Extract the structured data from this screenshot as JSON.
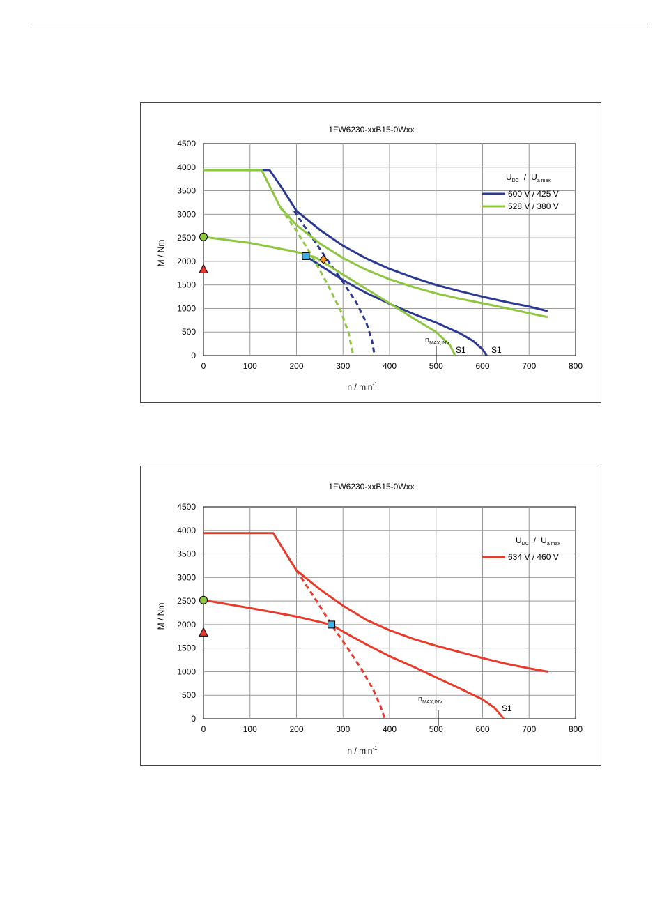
{
  "charts": [
    {
      "title": "1FW6230-xxB15-0Wxx",
      "ylabel": "M / Nm",
      "xlabel_base": "n / min",
      "xlabel_sup": "-1",
      "legend_header": {
        "u_dc": "U",
        "u_dc_sub": "DC",
        "sep": "/",
        "u_a": "U",
        "u_a_sub": "a max"
      },
      "nmax_label": {
        "main": "n",
        "sub": "MAX,INV"
      }
    },
    {
      "title": "1FW6230-xxB15-0Wxx",
      "ylabel": "M / Nm",
      "xlabel_base": "n / min",
      "xlabel_sup": "-1",
      "legend_header": {
        "u_dc": "U",
        "u_dc_sub": "DC",
        "sep": "/",
        "u_a": "U",
        "u_a_sub": "a max"
      },
      "nmax_label": {
        "main": "n",
        "sub": "MAX,INV"
      }
    }
  ],
  "chart_data": [
    {
      "type": "line",
      "title": "1FW6230-xxB15-0Wxx",
      "xlabel": "n / min-1",
      "ylabel": "M / Nm",
      "xlim": [
        0,
        800
      ],
      "ylim": [
        0,
        4500
      ],
      "xticks": [
        0,
        100,
        200,
        300,
        400,
        500,
        600,
        700,
        800
      ],
      "yticks": [
        0,
        500,
        1000,
        1500,
        2000,
        2500,
        3000,
        3500,
        4000,
        4500
      ],
      "grid": true,
      "legend_position": "top-right",
      "series": [
        {
          "name": "600 V / 425 V",
          "color": "#2b3990",
          "curves": [
            {
              "style": "solid",
              "x": [
                0,
                142,
                170,
                200,
                250,
                300,
                350,
                400,
                450,
                500,
                550,
                600,
                650,
                700,
                740
              ],
              "y": [
                3940,
                3940,
                3540,
                3070,
                2670,
                2330,
                2060,
                1840,
                1660,
                1500,
                1370,
                1250,
                1140,
                1040,
                945
              ]
            },
            {
              "style": "solid",
              "x": [
                220,
                250,
                300,
                350,
                400,
                450,
                500,
                550,
                580,
                600,
                609
              ],
              "y": [
                2110,
                1920,
                1600,
                1330,
                1100,
                890,
                700,
                480,
                310,
                130,
                0
              ]
            },
            {
              "style": "dashed",
              "x": [
                195,
                220,
                260,
                300,
                330,
                350,
                362,
                368
              ],
              "y": [
                3070,
                2700,
                2120,
                1560,
                1100,
                700,
                330,
                0
              ]
            }
          ]
        },
        {
          "name": "528 V / 380 V",
          "color": "#8dc63f",
          "curves": [
            {
              "style": "solid",
              "x": [
                0,
                125,
                165,
                200,
                250,
                300,
                350,
                400,
                450,
                500,
                550,
                600,
                650,
                700,
                740
              ],
              "y": [
                3940,
                3940,
                3150,
                2770,
                2380,
                2070,
                1820,
                1620,
                1460,
                1320,
                1210,
                1110,
                1010,
                900,
                815
              ]
            },
            {
              "style": "solid",
              "x": [
                0,
                100,
                200,
                240,
                300,
                400,
                450,
                500,
                530,
                541
              ],
              "y": [
                2520,
                2390,
                2200,
                2090,
                1720,
                1110,
                800,
                500,
                220,
                0
              ]
            },
            {
              "style": "dashed",
              "x": [
                165,
                200,
                240,
                270,
                295,
                312,
                322
              ],
              "y": [
                3150,
                2650,
                2000,
                1450,
                950,
                480,
                0
              ]
            }
          ]
        }
      ],
      "markers": [
        {
          "shape": "circle",
          "color": "#8dc63f",
          "x": 0,
          "y": 2520
        },
        {
          "shape": "triangle",
          "color": "#e8392b",
          "x": 0,
          "y": 1830
        },
        {
          "shape": "square",
          "color": "#3fb0e5",
          "x": 220,
          "y": 2110
        },
        {
          "shape": "diamond",
          "color": "#f7941d",
          "x": 258,
          "y": 2040
        }
      ],
      "annotations": [
        {
          "text": "S1",
          "x": 560,
          "y": 120
        },
        {
          "text": "S1",
          "x": 630,
          "y": 120
        },
        {
          "text": "n MAX,INV",
          "x": 500,
          "y": 250
        }
      ]
    },
    {
      "type": "line",
      "title": "1FW6230-xxB15-0Wxx",
      "xlabel": "n / min-1",
      "ylabel": "M / Nm",
      "xlim": [
        0,
        800
      ],
      "ylim": [
        0,
        4500
      ],
      "xticks": [
        0,
        100,
        200,
        300,
        400,
        500,
        600,
        700,
        800
      ],
      "yticks": [
        0,
        500,
        1000,
        1500,
        2000,
        2500,
        3000,
        3500,
        4000,
        4500
      ],
      "grid": true,
      "legend_position": "top-right",
      "series": [
        {
          "name": "634 V / 460 V",
          "color": "#e8392b",
          "curves": [
            {
              "style": "solid",
              "x": [
                0,
                150,
                200,
                250,
                300,
                350,
                400,
                450,
                500,
                550,
                600,
                650,
                700,
                740
              ],
              "y": [
                3940,
                3940,
                3150,
                2750,
                2400,
                2100,
                1880,
                1700,
                1550,
                1420,
                1290,
                1170,
                1070,
                1000
              ]
            },
            {
              "style": "solid",
              "x": [
                0,
                100,
                200,
                275,
                300,
                350,
                400,
                450,
                500,
                550,
                600,
                625,
                640,
                645
              ],
              "y": [
                2520,
                2350,
                2170,
                2000,
                1850,
                1580,
                1330,
                1110,
                880,
                650,
                410,
                240,
                70,
                0
              ]
            },
            {
              "style": "dashed",
              "x": [
                200,
                240,
                275,
                310,
                340,
                365,
                380,
                390
              ],
              "y": [
                3150,
                2550,
                2000,
                1500,
                1050,
                620,
                280,
                0
              ]
            }
          ]
        }
      ],
      "markers": [
        {
          "shape": "circle",
          "color": "#8dc63f",
          "x": 0,
          "y": 2520
        },
        {
          "shape": "triangle",
          "color": "#e8392b",
          "x": 0,
          "y": 1830
        },
        {
          "shape": "square",
          "color": "#3fb0e5",
          "x": 275,
          "y": 2000
        }
      ],
      "annotations": [
        {
          "text": "S1",
          "x": 650,
          "y": 120
        },
        {
          "text": "n MAX,INV",
          "x": 500,
          "y": 250
        }
      ]
    }
  ]
}
